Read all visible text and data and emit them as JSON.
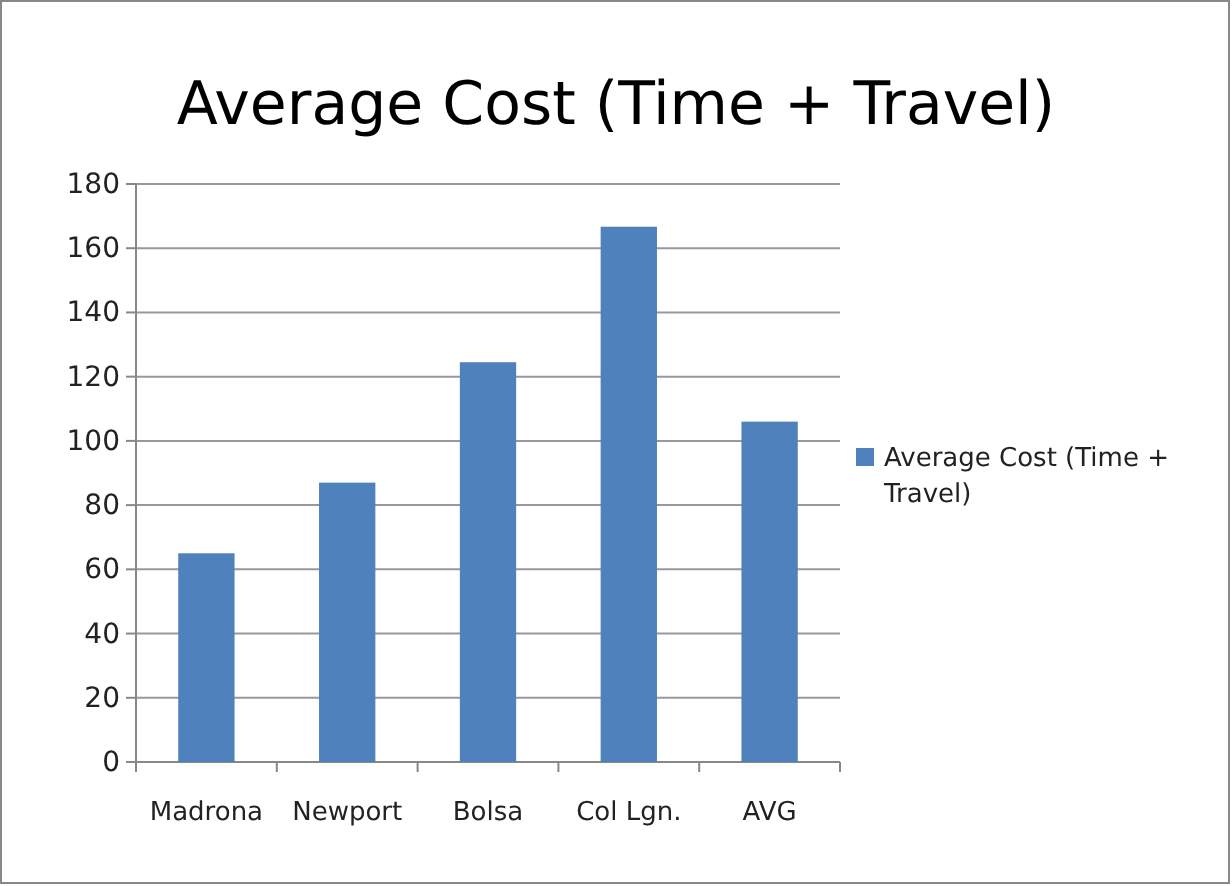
{
  "chart_data": {
    "type": "bar",
    "title": "Average Cost (Time + Travel)",
    "categories": [
      "Madrona",
      "Newport",
      "Bolsa",
      "Col Lgn.",
      "AVG"
    ],
    "series": [
      {
        "name": "Average Cost (Time + Travel)",
        "color": "#4f81bd",
        "values": [
          65,
          87,
          124.5,
          166.7,
          106
        ]
      }
    ],
    "ylim": [
      0,
      180
    ],
    "yticks": [
      0,
      20,
      40,
      60,
      80,
      100,
      120,
      140,
      160,
      180
    ],
    "grid": "y",
    "legend": "right"
  }
}
